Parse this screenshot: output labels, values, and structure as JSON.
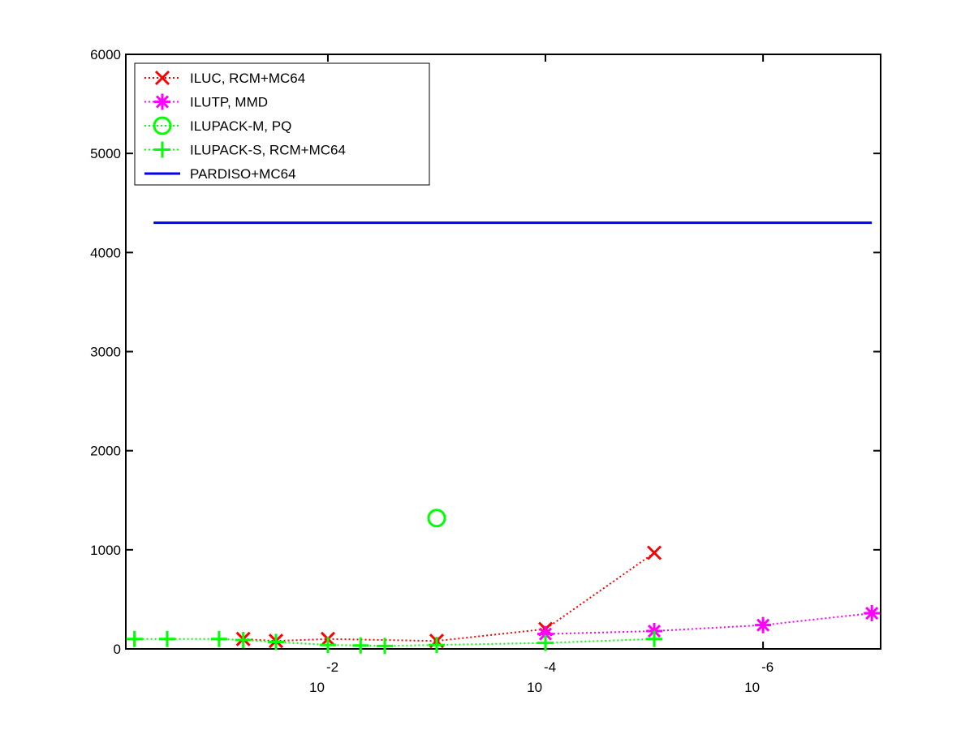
{
  "chart_data": {
    "type": "line",
    "xscale": "log",
    "xlim": [
      0.72,
      8.3e-08
    ],
    "xticks": [
      {
        "value": 0.01,
        "label": "10",
        "exponent": "-2"
      },
      {
        "value": 0.0001,
        "label": "10",
        "exponent": "-4"
      },
      {
        "value": 1e-06,
        "label": "10",
        "exponent": "-6"
      }
    ],
    "ylim": [
      0,
      6000
    ],
    "yticks": [
      0,
      1000,
      2000,
      3000,
      4000,
      5000,
      6000
    ],
    "grid": false,
    "legend": "upper left",
    "series": [
      {
        "name": "ILUC, RCM+MC64",
        "color": "#ff0000",
        "marker": "x",
        "linestyle": "dotted",
        "x": [
          0.06,
          0.03,
          0.01,
          0.001,
          0.0001,
          1e-05
        ],
        "values": [
          100,
          80,
          100,
          80,
          200,
          970
        ]
      },
      {
        "name": "ILUTP, MMD",
        "color": "#ff00ff",
        "marker": "*",
        "linestyle": "dotted",
        "x": [
          0.0001,
          1e-05,
          1e-06,
          1e-07
        ],
        "values": [
          150,
          180,
          240,
          360
        ]
      },
      {
        "name": "ILUPACK-M, PQ",
        "color": "#00ff00",
        "marker": "o",
        "linestyle": "dotted",
        "x": [
          0.001
        ],
        "values": [
          1320
        ]
      },
      {
        "name": "ILUPACK-S, RCM+MC64",
        "color": "#00ff00",
        "marker": "+",
        "linestyle": "dotted",
        "x": [
          0.6,
          0.3,
          0.1,
          0.06,
          0.03,
          0.01,
          0.005,
          0.003,
          0.001,
          0.0001,
          1e-05
        ],
        "values": [
          100,
          100,
          100,
          90,
          70,
          40,
          35,
          30,
          40,
          60,
          100
        ]
      },
      {
        "name": "PARDISO+MC64",
        "color": "#0000ff",
        "marker": "none",
        "linestyle": "solid",
        "x": [
          0.4,
          1e-07
        ],
        "values": [
          4300,
          4300
        ]
      }
    ]
  }
}
